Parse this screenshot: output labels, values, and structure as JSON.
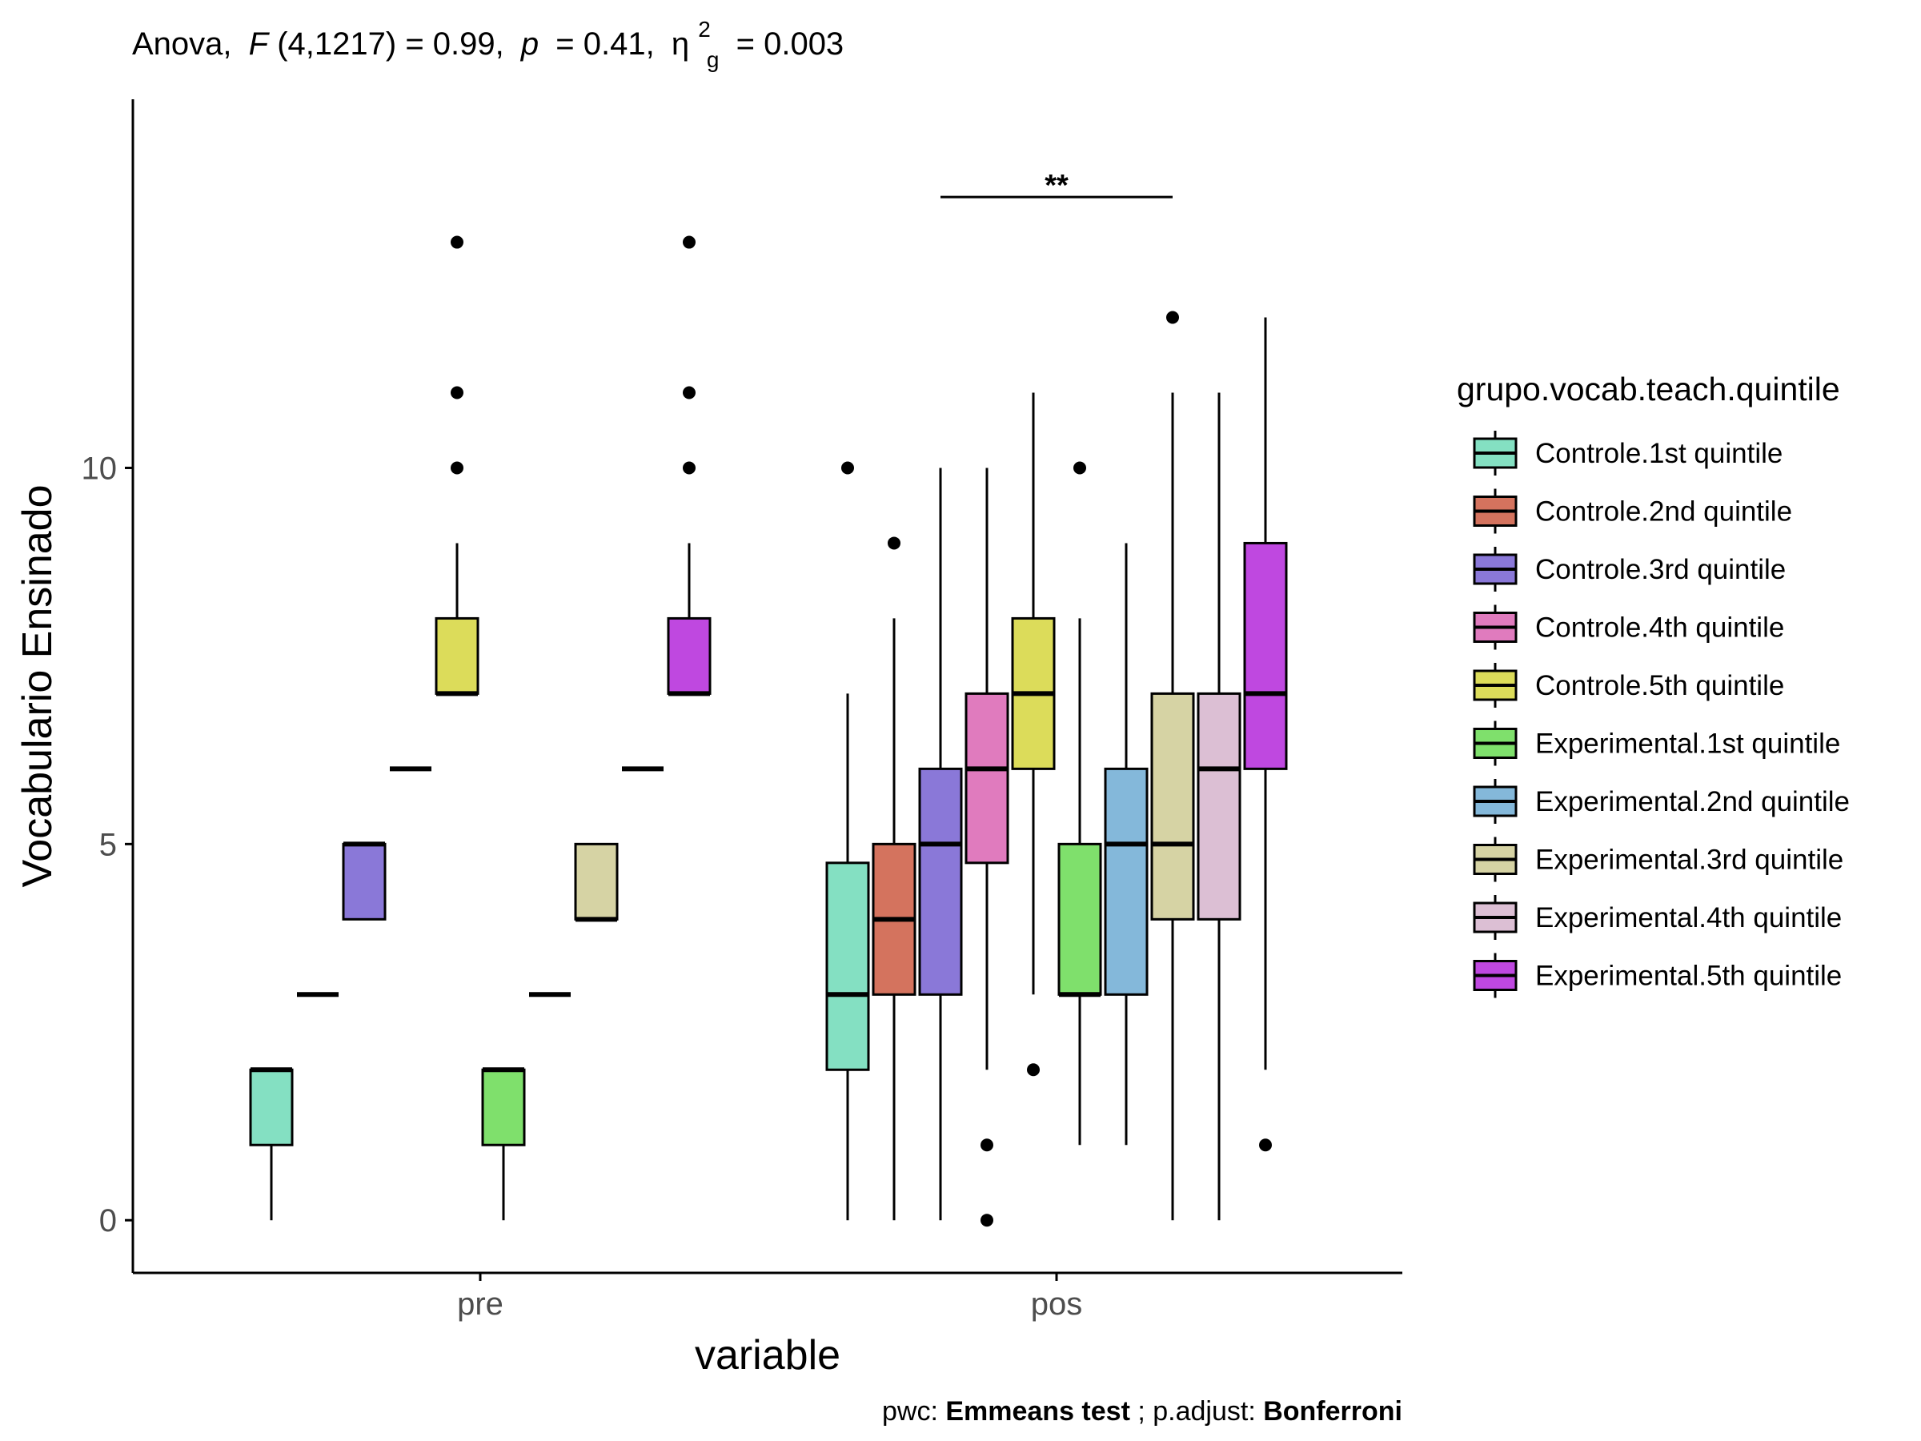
{
  "chart_data": {
    "type": "boxplot",
    "title_parts": {
      "prefix": "Anova,",
      "f_symbol": "F",
      "f_args": "(4,1217) = 0.99,",
      "p_symbol": "p",
      "p_value": "= 0.41,",
      "eta_symbol": "η",
      "eta_sup": "2",
      "eta_sub": "g",
      "eta_value": "= 0.003"
    },
    "xlabel": "variable",
    "ylabel": "Vocabulario Ensinado",
    "categories": [
      "pre",
      "pos"
    ],
    "yticks": [
      0,
      5,
      10
    ],
    "ylim": [
      -0.7,
      14.9
    ],
    "legend": {
      "title": "grupo.vocab.teach.quintile",
      "position": "right"
    },
    "series": [
      {
        "name": "Controle.1st quintile",
        "color": "#84e0c2",
        "stats": {
          "pre": {
            "min": 0,
            "q1": 1,
            "median": 2,
            "q3": 2,
            "max": 2,
            "outliers": []
          },
          "pos": {
            "min": 0,
            "q1": 2,
            "median": 3,
            "q3": 4.75,
            "max": 7,
            "outliers": [
              10
            ]
          }
        }
      },
      {
        "name": "Controle.2nd quintile",
        "color": "#d4735e",
        "stats": {
          "pre": {
            "min": 3,
            "q1": 3,
            "median": 3,
            "q3": 3,
            "max": 3,
            "outliers": []
          },
          "pos": {
            "min": 0,
            "q1": 3,
            "median": 4,
            "q3": 5,
            "max": 8,
            "outliers": [
              9
            ]
          }
        }
      },
      {
        "name": "Controle.3rd quintile",
        "color": "#8a78d8",
        "stats": {
          "pre": {
            "min": 4,
            "q1": 4,
            "median": 5,
            "q3": 5,
            "max": 5,
            "outliers": []
          },
          "pos": {
            "min": 0,
            "q1": 3,
            "median": 5,
            "q3": 6,
            "max": 10,
            "outliers": []
          }
        }
      },
      {
        "name": "Controle.4th quintile",
        "color": "#e07bbe",
        "stats": {
          "pre": {
            "min": 6,
            "q1": 6,
            "median": 6,
            "q3": 6,
            "max": 6,
            "outliers": []
          },
          "pos": {
            "min": 2,
            "q1": 4.75,
            "median": 6,
            "q3": 7,
            "max": 10,
            "outliers": [
              1,
              0
            ]
          }
        }
      },
      {
        "name": "Controle.5th quintile",
        "color": "#dcdc5a",
        "stats": {
          "pre": {
            "min": 7,
            "q1": 7,
            "median": 7,
            "q3": 8,
            "max": 9,
            "outliers": [
              10,
              11,
              13
            ]
          },
          "pos": {
            "min": 3,
            "q1": 6,
            "median": 7,
            "q3": 8,
            "max": 11,
            "outliers": [
              2
            ]
          }
        }
      },
      {
        "name": "Experimental.1st quintile",
        "color": "#7fe06c",
        "stats": {
          "pre": {
            "min": 0,
            "q1": 1,
            "median": 2,
            "q3": 2,
            "max": 2,
            "outliers": []
          },
          "pos": {
            "min": 1,
            "q1": 3,
            "median": 3,
            "q3": 5,
            "max": 8,
            "outliers": [
              10
            ]
          }
        }
      },
      {
        "name": "Experimental.2nd quintile",
        "color": "#84b8da",
        "stats": {
          "pre": {
            "min": 3,
            "q1": 3,
            "median": 3,
            "q3": 3,
            "max": 3,
            "outliers": []
          },
          "pos": {
            "min": 1,
            "q1": 3,
            "median": 5,
            "q3": 6,
            "max": 9,
            "outliers": []
          }
        }
      },
      {
        "name": "Experimental.3rd quintile",
        "color": "#d6d3a4",
        "stats": {
          "pre": {
            "min": 4,
            "q1": 4,
            "median": 4,
            "q3": 5,
            "max": 5,
            "outliers": []
          },
          "pos": {
            "min": 0,
            "q1": 4,
            "median": 5,
            "q3": 7,
            "max": 11,
            "outliers": [
              12
            ]
          }
        }
      },
      {
        "name": "Experimental.4th quintile",
        "color": "#dcbfd4",
        "stats": {
          "pre": {
            "min": 6,
            "q1": 6,
            "median": 6,
            "q3": 6,
            "max": 6,
            "outliers": []
          },
          "pos": {
            "min": 0,
            "q1": 4,
            "median": 6,
            "q3": 7,
            "max": 11,
            "outliers": []
          }
        }
      },
      {
        "name": "Experimental.5th quintile",
        "color": "#bf48e0",
        "stats": {
          "pre": {
            "min": 7,
            "q1": 7,
            "median": 7,
            "q3": 8,
            "max": 9,
            "outliers": [
              10,
              11,
              13
            ]
          },
          "pos": {
            "min": 2,
            "q1": 6,
            "median": 7,
            "q3": 9,
            "max": 12,
            "outliers": [
              1
            ]
          }
        }
      }
    ],
    "significance": [
      {
        "category": "pos",
        "from_series": 2,
        "to_series": 7,
        "y": 13.6,
        "label": "**"
      }
    ],
    "caption_parts": {
      "pwc_label": "pwc: ",
      "pwc_value": "Emmeans test",
      "sep": "; p.adjust: ",
      "adjust_value": "Bonferroni"
    }
  }
}
